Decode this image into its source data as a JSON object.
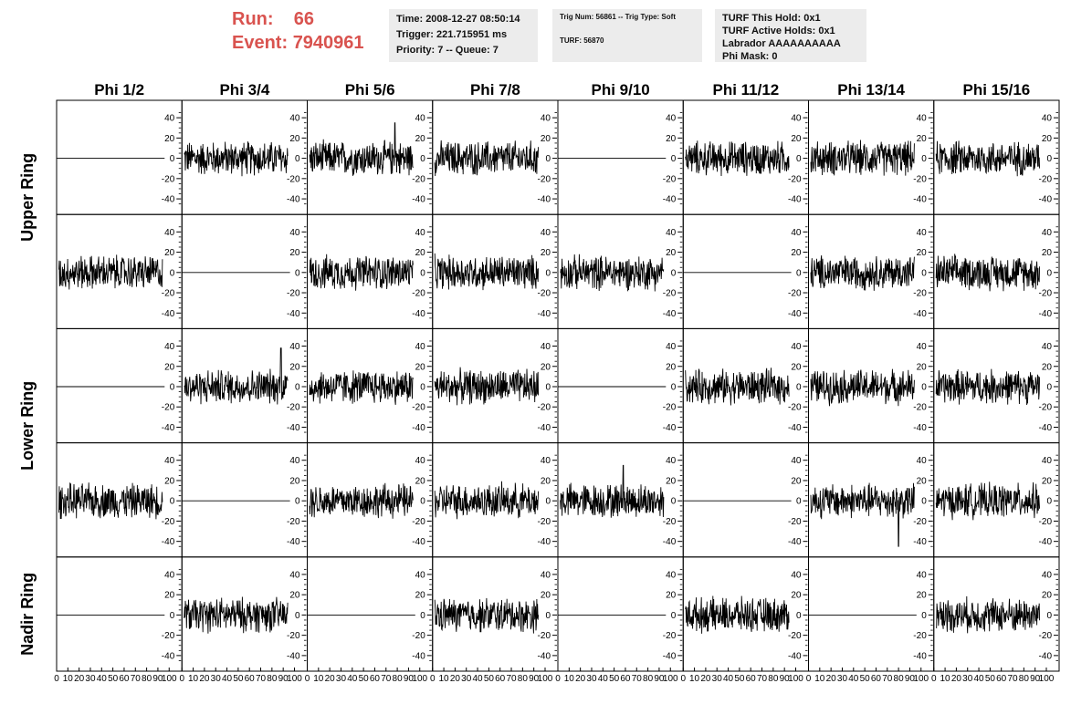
{
  "header": {
    "run_label": "Run:",
    "run_value": "66",
    "event_label": "Event:",
    "event_value": "7940961",
    "time_line": "Time: 2008-12-27 08:50:14",
    "trigger_line": "Trigger: 221.715951 ms",
    "priority_line": "Priority: 7 -- Queue: 7",
    "trig_num_line": "Trig Num: 56861 -- Trig Type: Soft",
    "turf_line": "TURF: 56870",
    "turf_hold_line": "TURF This Hold: 0x1",
    "turf_active_line": "TURF Active Holds: 0x1",
    "labrador_line": "Labrador AAAAAAAAAA",
    "phi_mask_line": "Phi Mask: 0"
  },
  "colors": {
    "header_text": "#d9534f",
    "info_box_bg": "#ececec",
    "trace": "#000000"
  },
  "chart_data": {
    "type": "line",
    "columns": [
      "Phi 1/2",
      "Phi 3/4",
      "Phi 5/6",
      "Phi 7/8",
      "Phi 9/10",
      "Phi 11/12",
      "Phi 13/14",
      "Phi 15/16"
    ],
    "rows": [
      "Upper Ring",
      "Lower Ring",
      "Nadir Ring"
    ],
    "x_range": [
      0,
      100
    ],
    "y_range": [
      -50,
      50
    ],
    "y_ticks": [
      -40,
      -20,
      0,
      20,
      40
    ],
    "x_tick_labels": [
      "0",
      "10",
      "20",
      "30",
      "40",
      "50",
      "60",
      "70",
      "80",
      "90",
      "100"
    ],
    "panel_rows": 5,
    "panel_cols": 8,
    "panels_with_signal": [
      [
        false,
        true,
        true,
        true,
        false,
        true,
        true,
        true
      ],
      [
        true,
        false,
        true,
        true,
        true,
        false,
        true,
        true
      ],
      [
        false,
        true,
        true,
        true,
        false,
        true,
        true,
        true
      ],
      [
        true,
        false,
        true,
        true,
        true,
        false,
        true,
        true
      ],
      [
        false,
        true,
        false,
        true,
        false,
        true,
        false,
        true
      ]
    ],
    "amplitude_approx": 15,
    "notable_spikes": [
      {
        "panel_row": 0,
        "panel_col": 2,
        "x": 78,
        "y": 35
      },
      {
        "panel_row": 2,
        "panel_col": 1,
        "x": 88,
        "y": 38
      },
      {
        "panel_row": 3,
        "panel_col": 4,
        "x": 58,
        "y": 35
      },
      {
        "panel_row": 3,
        "panel_col": 6,
        "x": 80,
        "y": -45
      }
    ]
  }
}
